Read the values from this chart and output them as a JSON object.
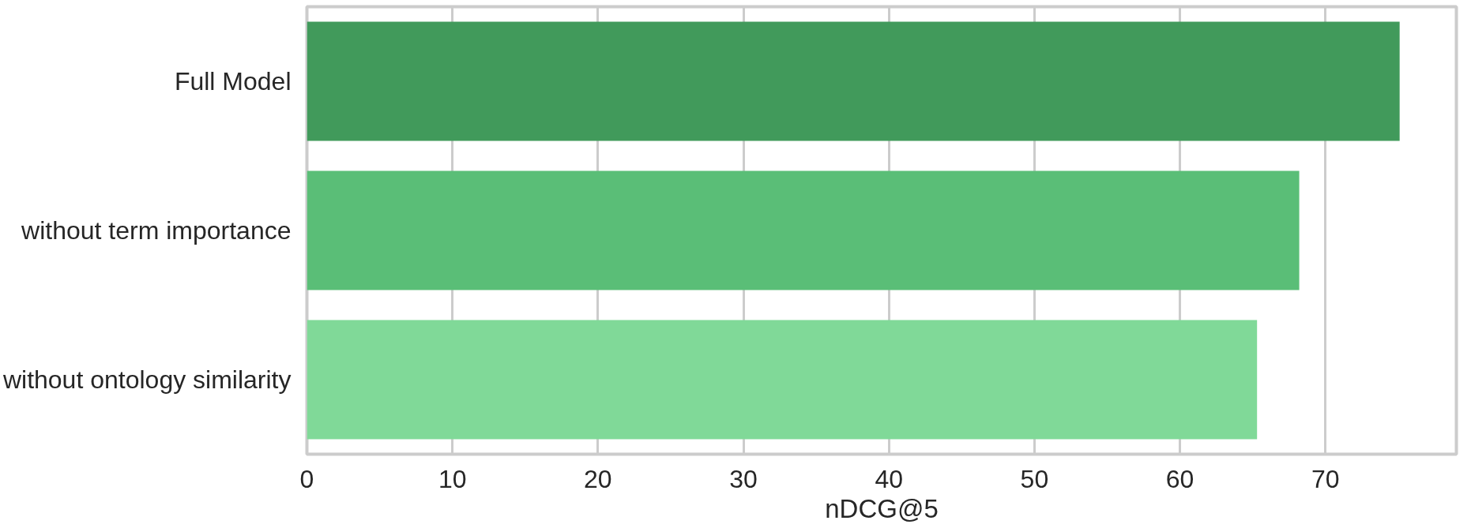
{
  "chart_data": {
    "type": "bar",
    "orientation": "horizontal",
    "xlabel": "nDCG@5",
    "categories": [
      "Full Model",
      "without term importance",
      "without ontology similarity"
    ],
    "values": [
      75.1,
      68.2,
      65.3
    ],
    "colors": [
      "#419a5b",
      "#5abe77",
      "#80d998"
    ],
    "xlim": [
      0,
      79
    ],
    "xticks": [
      0,
      10,
      20,
      30,
      40,
      50,
      60,
      70
    ],
    "grid": "x"
  }
}
